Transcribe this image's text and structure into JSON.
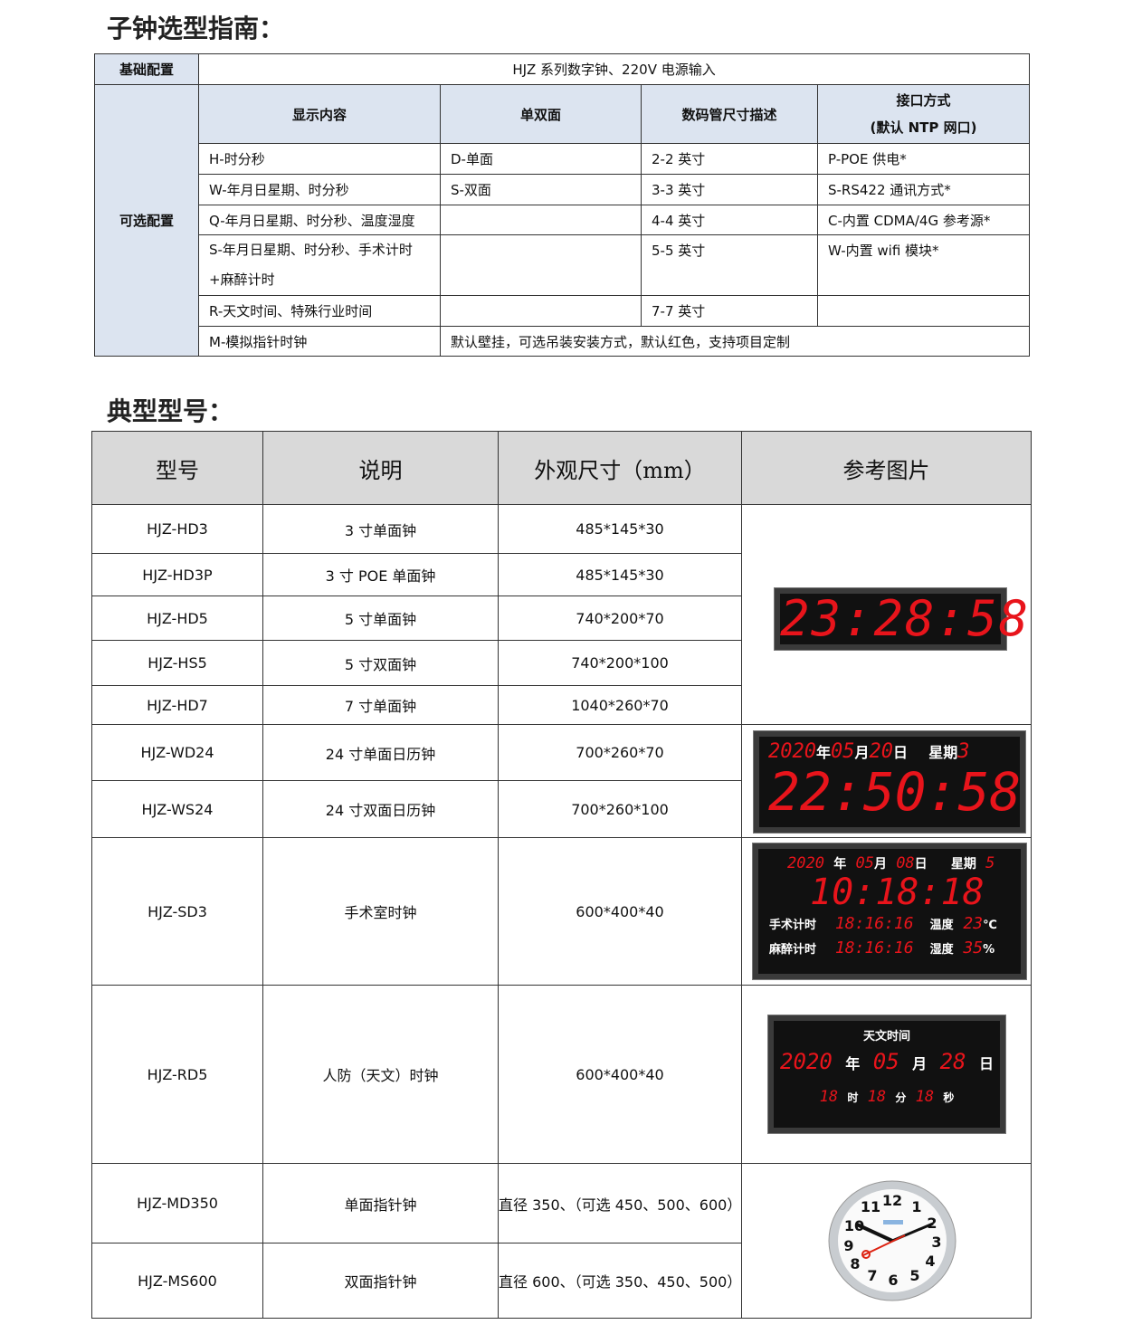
{
  "section1_title": "子钟选型指南：",
  "section2_title": "典型型号：",
  "config": {
    "basic_label": "基础配置",
    "basic_value": "HJZ  系列数字钟、220V 电源输入",
    "optional_label": "可选配置",
    "headers": [
      "显示内容",
      "单双面",
      "数码管尺寸描述",
      "接口方式",
      "(默认 NTP 网口)"
    ],
    "rows": [
      [
        "H-时分秒",
        "D-单面",
        "2-2 英寸",
        "P-POE 供电*"
      ],
      [
        "W-年月日星期、时分秒",
        "S-双面",
        "3-3 英寸",
        "S-RS422 通讯方式*"
      ],
      [
        "Q-年月日星期、时分秒、温度湿度",
        "",
        "4-4 英寸",
        "C-内置 CDMA/4G 参考源*"
      ],
      [
        "S-年月日星期、时分秒、手术计时+麻醉计时",
        "",
        "5-5 英寸",
        "W-内置 wifi 模块*"
      ],
      [
        "R-天文时间、特殊行业时间",
        "",
        "7-7 英寸",
        ""
      ],
      [
        "M-模拟指针时钟",
        "默认壁挂，可选吊装安装方式，默认红色，支持项目定制"
      ]
    ]
  },
  "models": {
    "headers": [
      "型号",
      "说明",
      "外观尺寸（mm）",
      "参考图片"
    ],
    "rows": [
      [
        "HJZ-HD3",
        "3 寸单面钟",
        "485*145*30"
      ],
      [
        "HJZ-HD3P",
        "3 寸 POE 单面钟",
        "485*145*30"
      ],
      [
        "HJZ-HD5",
        "5 寸单面钟",
        "740*200*70"
      ],
      [
        "HJZ-HS5",
        "5 寸双面钟",
        "740*200*100"
      ],
      [
        "HJZ-HD7",
        "7 寸单面钟",
        "1040*260*70"
      ],
      [
        "HJZ-WD24",
        "24 寸单面日历钟",
        "700*260*70"
      ],
      [
        "HJZ-WS24",
        "24 寸双面日历钟",
        "700*260*100"
      ],
      [
        "HJZ-SD3",
        "手术室时钟",
        "600*400*40"
      ],
      [
        "HJZ-RD5",
        "人防（天文）时钟",
        "600*400*40"
      ],
      [
        "HJZ-MD350",
        "单面指针钟",
        "直径 350、（可选 450、500、600）"
      ],
      [
        "HJZ-MS600",
        "双面指针钟",
        "直径 600、（可选 350、450、500）"
      ]
    ]
  },
  "images": {
    "led_color": "#e8141b",
    "hd": {
      "time": "23:28:58"
    },
    "wd": {
      "year": "2020",
      "y": "年",
      "month": "05",
      "m": "月",
      "day": "20",
      "d": "日",
      "wk": "星期",
      "wkv": "3",
      "time": "22:50:58"
    },
    "sd": {
      "year": "2020",
      "y": "年",
      "month": "05",
      "m": "月",
      "day": "08",
      "d": "日",
      "wk": "星期",
      "wkv": "5",
      "time": "10:18:18",
      "op_label": "手术计时",
      "op": "18:16:16",
      "an_label": "麻醉计时",
      "an": "18:16:16",
      "temp_label": "温度",
      "temp": "23",
      "temp_unit": "℃",
      "hum_label": "湿度",
      "hum": "35",
      "hum_unit": "%"
    },
    "rd": {
      "title": "天文时间",
      "year": "2020",
      "y": "年",
      "month": "05",
      "m": "月",
      "day": "28",
      "d": "日",
      "h": "18",
      "hl": "时",
      "mi": "18",
      "ml": "分",
      "s": "18",
      "sl": "秒"
    }
  }
}
